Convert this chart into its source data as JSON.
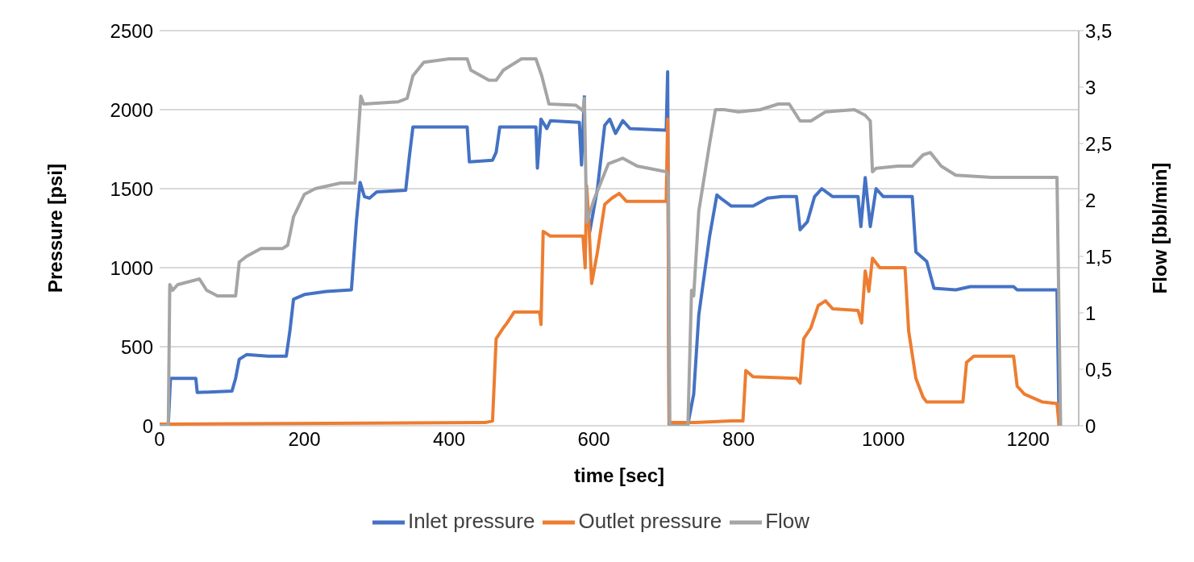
{
  "chart_data": {
    "type": "line",
    "xlabel": "time [sec]",
    "ylabel": "Pressure [psi]",
    "y2label": "Flow [bbl/min]",
    "xlim": [
      0,
      1270
    ],
    "xticks": [
      0,
      200,
      400,
      600,
      800,
      1000,
      1200
    ],
    "ylim": [
      0,
      2500
    ],
    "yticks": [
      0,
      500,
      1000,
      1500,
      2000,
      2500
    ],
    "y2lim": [
      0,
      3.5
    ],
    "y2ticks": [
      0,
      {
        "value": 0.5,
        "label": "0,5"
      },
      1,
      {
        "value": 1.5,
        "label": "1,5"
      },
      2,
      {
        "value": 2.5,
        "label": "2,5"
      },
      3,
      {
        "value": 3.5,
        "label": "3,5"
      }
    ],
    "grid": "y",
    "legend": "bottom",
    "marker": "none",
    "line_style": "solid",
    "series": [
      {
        "name": "Inlet pressure",
        "color": "#4472c4",
        "x": [
          12,
          15,
          50,
          52,
          100,
          105,
          110,
          120,
          150,
          175,
          180,
          185,
          200,
          230,
          265,
          272,
          277,
          283,
          290,
          300,
          340,
          345,
          350,
          380,
          425,
          428,
          460,
          465,
          470,
          520,
          522,
          527,
          535,
          540,
          580,
          583,
          587,
          590,
          594,
          605,
          615,
          622,
          630,
          640,
          650,
          700,
          702,
          704,
          730,
          738,
          745,
          760,
          770,
          778,
          790,
          820,
          840,
          860,
          880,
          885,
          895,
          905,
          915,
          930,
          965,
          969,
          975,
          982,
          990,
          1000,
          1040,
          1045,
          1060,
          1070,
          1100,
          1120,
          1180,
          1185,
          1240,
          1243
        ],
        "values": [
          10,
          300,
          300,
          210,
          220,
          300,
          420,
          450,
          440,
          440,
          600,
          800,
          830,
          850,
          860,
          1300,
          1540,
          1450,
          1440,
          1480,
          1490,
          1700,
          1890,
          1890,
          1890,
          1670,
          1680,
          1730,
          1890,
          1890,
          1630,
          1940,
          1880,
          1930,
          1920,
          1650,
          2090,
          null,
          1220,
          1500,
          1900,
          1940,
          1850,
          1930,
          1880,
          1870,
          2240,
          10,
          10,
          200,
          700,
          1200,
          1460,
          1430,
          1390,
          1390,
          1440,
          1450,
          1450,
          1240,
          1290,
          1450,
          1500,
          1450,
          1450,
          1260,
          1570,
          1260,
          1500,
          1450,
          1450,
          1100,
          1040,
          870,
          860,
          880,
          880,
          860,
          860,
          0
        ]
      },
      {
        "name": "Outlet pressure",
        "color": "#ed7d31",
        "x": [
          0,
          450,
          460,
          465,
          475,
          480,
          490,
          525,
          527,
          530,
          540,
          585,
          588,
          590,
          593,
          597,
          605,
          615,
          625,
          635,
          645,
          700,
          702,
          704,
          740,
          790,
          806,
          810,
          820,
          880,
          885,
          890,
          900,
          910,
          920,
          930,
          965,
          970,
          975,
          980,
          985,
          995,
          1030,
          1035,
          1045,
          1055,
          1060,
          1110,
          1115,
          1125,
          1180,
          1185,
          1195,
          1220,
          1240,
          1243
        ],
        "values": [
          10,
          20,
          30,
          550,
          620,
          650,
          720,
          720,
          640,
          1230,
          1200,
          1200,
          1000,
          1520,
          1300,
          900,
          1100,
          1400,
          1440,
          1470,
          1420,
          1420,
          1940,
          20,
          20,
          30,
          30,
          350,
          310,
          300,
          270,
          550,
          620,
          760,
          790,
          740,
          730,
          650,
          980,
          850,
          1060,
          1000,
          1000,
          600,
          300,
          180,
          150,
          150,
          400,
          440,
          440,
          250,
          200,
          150,
          140,
          0
        ]
      },
      {
        "name": "Flow",
        "color": "#a5a5a5",
        "axis": "y2",
        "x": [
          0,
          12,
          14,
          18,
          25,
          55,
          65,
          80,
          105,
          110,
          120,
          140,
          170,
          177,
          185,
          200,
          215,
          250,
          270,
          278,
          282,
          330,
          342,
          350,
          365,
          400,
          425,
          430,
          455,
          465,
          475,
          500,
          520,
          528,
          538,
          575,
          585,
          587,
          590,
          600,
          620,
          640,
          660,
          700,
          703,
          705,
          730,
          735,
          738,
          745,
          760,
          768,
          780,
          800,
          830,
          855,
          870,
          885,
          900,
          920,
          960,
          975,
          982,
          985,
          990,
          1020,
          1040,
          1055,
          1065,
          1080,
          1100,
          1150,
          1240,
          1245
        ],
        "values": [
          0,
          0,
          1.25,
          1.2,
          1.25,
          1.3,
          1.2,
          1.15,
          1.15,
          1.45,
          1.5,
          1.57,
          1.57,
          1.6,
          1.85,
          2.05,
          2.1,
          2.15,
          2.15,
          2.92,
          2.85,
          2.87,
          2.9,
          3.1,
          3.22,
          3.25,
          3.25,
          3.15,
          3.06,
          3.06,
          3.15,
          3.25,
          3.25,
          3.1,
          2.85,
          2.84,
          2.79,
          2.9,
          1.8,
          2,
          2.32,
          2.37,
          2.3,
          2.25,
          2.2,
          0,
          0,
          1.2,
          1.15,
          1.9,
          2.5,
          2.8,
          2.8,
          2.78,
          2.8,
          2.85,
          2.85,
          2.7,
          2.7,
          2.78,
          2.8,
          2.75,
          2.7,
          2.25,
          2.28,
          2.3,
          2.3,
          2.4,
          2.42,
          2.3,
          2.22,
          2.2,
          2.2,
          0
        ]
      }
    ]
  }
}
